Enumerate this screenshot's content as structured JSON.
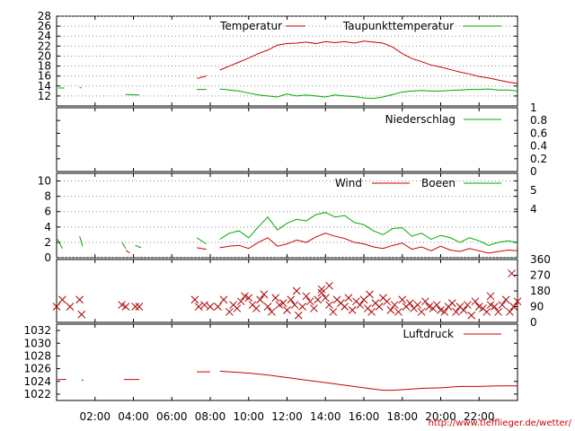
{
  "url_text": "http://www.tiefflieger.de/wetter/",
  "colors": {
    "primary": "#cc0000",
    "secondary": "#00aa00",
    "grid": "#888888"
  },
  "chart_data": [
    {
      "type": "line",
      "panel": "temperature",
      "ylim": [
        10,
        28
      ],
      "yticks": [
        "12",
        "14",
        "16",
        "18",
        "20",
        "22",
        "24",
        "26",
        "28"
      ],
      "grid": true,
      "legend_position": "top-right",
      "series": [
        {
          "name": "Temperatur",
          "color": "#cc0000",
          "x": [
            8.5,
            9,
            9.5,
            10,
            10.5,
            11,
            11.5,
            12,
            12.5,
            13,
            13.5,
            14,
            14.5,
            15,
            15.5,
            16,
            16.5,
            17,
            17.5,
            18,
            18.5,
            19,
            19.5,
            20,
            20.5,
            21,
            21.5,
            22,
            22.5,
            23,
            23.5,
            24
          ],
          "y": [
            17.2,
            18.0,
            18.8,
            19.6,
            20.5,
            21.2,
            22.2,
            22.5,
            22.6,
            22.8,
            22.5,
            22.9,
            22.7,
            22.9,
            22.6,
            23.0,
            22.8,
            22.6,
            21.8,
            20.5,
            19.5,
            18.9,
            18.2,
            17.8,
            17.3,
            16.8,
            16.4,
            15.9,
            15.6,
            15.2,
            14.8,
            14.5
          ]
        },
        {
          "name": "Taupunkttemperatur",
          "color": "#00aa00",
          "x": [
            8.5,
            9,
            9.5,
            10,
            10.5,
            11,
            11.5,
            12,
            12.5,
            13,
            13.5,
            14,
            14.5,
            15,
            15.5,
            16,
            16.5,
            17,
            17.5,
            18,
            18.5,
            19,
            19.5,
            20,
            20.5,
            21,
            21.5,
            22,
            22.5,
            23,
            23.5,
            24
          ],
          "y": [
            13.4,
            13.2,
            13.0,
            12.6,
            12.2,
            12.0,
            11.8,
            12.4,
            12.0,
            12.2,
            12.0,
            11.8,
            12.2,
            12.0,
            11.9,
            11.6,
            11.5,
            11.8,
            12.3,
            12.8,
            13.0,
            13.1,
            13.0,
            13.0,
            13.1,
            13.2,
            13.3,
            13.3,
            13.4,
            13.2,
            13.2,
            13.0
          ]
        }
      ],
      "fragments": [
        {
          "color": "#00aa00",
          "x": [
            0.1,
            0.4
          ],
          "y": [
            13.6,
            13.6
          ]
        },
        {
          "color": "#00aa00",
          "x": [
            1.2,
            1.3
          ],
          "y": [
            13.7,
            13.6
          ]
        },
        {
          "color": "#00aa00",
          "x": [
            3.6,
            4.3
          ],
          "y": [
            12.3,
            12.2
          ]
        },
        {
          "color": "#00aa00",
          "x": [
            7.3,
            7.8
          ],
          "y": [
            13.3,
            13.3
          ]
        },
        {
          "color": "#cc0000",
          "x": [
            7.3,
            7.8
          ],
          "y": [
            15.5,
            16.0
          ]
        }
      ]
    },
    {
      "type": "line",
      "panel": "precipitation",
      "ylim": [
        0,
        1
      ],
      "yticks": [
        "0",
        "0.2",
        "0.4",
        "0.6",
        "0.8",
        "1"
      ],
      "grid": false,
      "legend_position": "top-right",
      "series": [
        {
          "name": "Niederschlag",
          "color": "#00aa00",
          "x": [],
          "y": []
        }
      ]
    },
    {
      "type": "line",
      "panel": "wind",
      "ylim": [
        0,
        11
      ],
      "yticks": [
        "0",
        "2",
        "4",
        "6",
        "8",
        "10"
      ],
      "yticks_right": [
        "4",
        "5"
      ],
      "grid": true,
      "legend_position": "top-right",
      "series": [
        {
          "name": "Wind",
          "color": "#cc0000",
          "x": [
            8.5,
            9,
            9.5,
            10,
            10.5,
            11,
            11.5,
            12,
            12.5,
            13,
            13.5,
            14,
            14.5,
            15,
            15.5,
            16,
            16.5,
            17,
            17.5,
            18,
            18.5,
            19,
            19.5,
            20,
            20.5,
            21,
            21.5,
            22,
            22.5,
            23,
            23.5,
            24
          ],
          "y": [
            1.3,
            1.5,
            1.6,
            1.2,
            2.0,
            2.6,
            1.5,
            1.8,
            2.3,
            2.0,
            2.7,
            3.2,
            2.8,
            2.5,
            2.0,
            1.8,
            1.4,
            1.2,
            1.6,
            1.9,
            1.1,
            1.4,
            0.9,
            1.5,
            1.0,
            0.8,
            1.2,
            0.9,
            0.6,
            0.8,
            1.0,
            0.9
          ]
        },
        {
          "name": "Boeen",
          "color": "#00aa00",
          "x": [
            8.5,
            9,
            9.5,
            10,
            10.5,
            11,
            11.5,
            12,
            12.5,
            13,
            13.5,
            14,
            14.5,
            15,
            15.5,
            16,
            16.5,
            17,
            17.5,
            18,
            18.5,
            19,
            19.5,
            20,
            20.5,
            21,
            21.5,
            22,
            22.5,
            23,
            23.5,
            24
          ],
          "y": [
            2.4,
            3.2,
            3.5,
            2.6,
            4.0,
            5.3,
            3.6,
            4.5,
            5.0,
            4.8,
            5.6,
            5.9,
            5.3,
            5.5,
            4.6,
            4.3,
            3.5,
            3.0,
            3.8,
            3.9,
            2.8,
            3.2,
            2.4,
            2.9,
            2.6,
            2.0,
            2.6,
            2.2,
            1.6,
            2.0,
            2.2,
            2.0
          ]
        }
      ],
      "fragments": [
        {
          "color": "#00aa00",
          "x": [
            0.05,
            0.3
          ],
          "y": [
            2.4,
            1.2
          ]
        },
        {
          "color": "#00aa00",
          "x": [
            1.2,
            1.35
          ],
          "y": [
            2.8,
            1.5
          ]
        },
        {
          "color": "#00aa00",
          "x": [
            3.4,
            3.6
          ],
          "y": [
            2.0,
            1.2
          ]
        },
        {
          "color": "#cc0000",
          "x": [
            3.6,
            3.8
          ],
          "y": [
            1.0,
            0.6
          ]
        },
        {
          "color": "#00aa00",
          "x": [
            4.1,
            4.4
          ],
          "y": [
            1.6,
            1.3
          ]
        },
        {
          "color": "#00aa00",
          "x": [
            7.3,
            7.8
          ],
          "y": [
            2.6,
            1.8
          ]
        },
        {
          "color": "#cc0000",
          "x": [
            7.3,
            7.8
          ],
          "y": [
            1.3,
            1.1
          ]
        }
      ]
    },
    {
      "type": "scatter",
      "panel": "wind_direction",
      "ylim": [
        0,
        360
      ],
      "yticks_right": [
        "0",
        "90",
        "180",
        "270",
        "360"
      ],
      "grid": false,
      "series": [
        {
          "name": "",
          "color": "#aa0000",
          "x": [
            0.0,
            0.3,
            0.7,
            1.2,
            1.3,
            3.4,
            3.6,
            4.1,
            4.3,
            7.2,
            7.4,
            7.7,
            8.0,
            8.4,
            8.7,
            9.0,
            9.2,
            9.4,
            9.6,
            9.8,
            10.0,
            10.2,
            10.4,
            10.6,
            10.8,
            11.0,
            11.2,
            11.4,
            11.6,
            11.8,
            12.0,
            12.2,
            12.4,
            12.6,
            12.8,
            13.0,
            13.2,
            13.4,
            13.6,
            13.8,
            14.0,
            14.2,
            14.4,
            14.6,
            14.8,
            15.0,
            15.2,
            15.4,
            15.6,
            15.8,
            16.0,
            16.2,
            16.4,
            16.6,
            16.8,
            17.0,
            17.2,
            17.4,
            17.6,
            17.8,
            18.0,
            18.2,
            18.4,
            18.6,
            18.8,
            19.0,
            19.2,
            19.4,
            19.6,
            19.8,
            20.0,
            20.2,
            20.4,
            20.6,
            20.8,
            21.0,
            21.2,
            21.4,
            21.6,
            21.8,
            22.0,
            22.2,
            22.4,
            22.6,
            22.8,
            23.0,
            23.2,
            23.4,
            23.6,
            23.8,
            24.0,
            14.2,
            13.8,
            12.5,
            16.3,
            22.6,
            23.7
          ],
          "y": [
            90,
            130,
            90,
            130,
            45,
            100,
            90,
            90,
            90,
            130,
            90,
            100,
            90,
            90,
            130,
            60,
            100,
            80,
            120,
            150,
            140,
            100,
            80,
            130,
            160,
            90,
            60,
            140,
            100,
            110,
            70,
            130,
            100,
            40,
            90,
            150,
            120,
            80,
            130,
            170,
            140,
            100,
            60,
            130,
            110,
            90,
            140,
            70,
            120,
            100,
            130,
            80,
            60,
            110,
            90,
            140,
            120,
            70,
            100,
            60,
            130,
            90,
            110,
            80,
            100,
            60,
            120,
            90,
            80,
            100,
            70,
            60,
            90,
            110,
            60,
            90,
            70,
            100,
            40,
            120,
            90,
            80,
            60,
            100,
            90,
            60,
            100,
            130,
            60,
            90,
            120,
            210,
            190,
            180,
            160,
            150,
            280
          ]
        }
      ]
    },
    {
      "type": "line",
      "panel": "pressure",
      "ylim": [
        1021,
        1033
      ],
      "yticks": [
        "1022",
        "1024",
        "1026",
        "1028",
        "1030",
        "1032"
      ],
      "xticks": [
        "02:00",
        "04:00",
        "06:00",
        "08:00",
        "10:00",
        "12:00",
        "14:00",
        "16:00",
        "18:00",
        "20:00",
        "22:00"
      ],
      "xlim": [
        0,
        24
      ],
      "grid": false,
      "legend_position": "top-right",
      "series": [
        {
          "name": "Luftdruck",
          "color": "#cc0000",
          "x": [
            8.5,
            9,
            10,
            11,
            12,
            13,
            14,
            15,
            16,
            16.5,
            17,
            17.5,
            18,
            19,
            20,
            21,
            22,
            23,
            24
          ],
          "y": [
            1025.6,
            1025.5,
            1025.3,
            1025.0,
            1024.6,
            1024.2,
            1023.8,
            1023.4,
            1023.0,
            1022.8,
            1022.6,
            1022.6,
            1022.7,
            1022.9,
            1023.0,
            1023.2,
            1023.2,
            1023.3,
            1023.3
          ]
        }
      ],
      "fragments": [
        {
          "color": "#cc0000",
          "x": [
            0.05,
            0.5
          ],
          "y": [
            1024.3,
            1024.3
          ]
        },
        {
          "color": "#cc0000",
          "x": [
            1.3,
            1.4
          ],
          "y": [
            1024.2,
            1024.2
          ]
        },
        {
          "color": "#cc0000",
          "x": [
            3.5,
            4.3
          ],
          "y": [
            1024.3,
            1024.3
          ]
        },
        {
          "color": "#cc0000",
          "x": [
            7.3,
            8.0
          ],
          "y": [
            1025.5,
            1025.5
          ]
        }
      ]
    }
  ]
}
